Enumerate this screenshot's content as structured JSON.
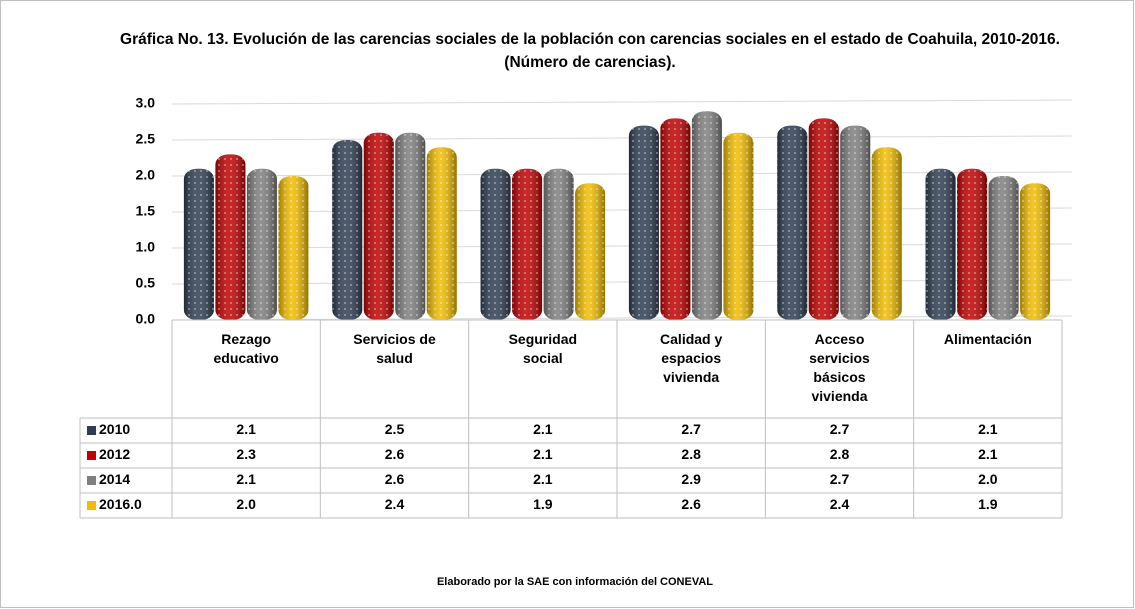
{
  "chart_data": {
    "type": "bar",
    "title": "Gráfica No. 13. Evolución de las carencias sociales de la población con carencias sociales en el estado de Coahuila, 2010-2016. (Número de carencias).",
    "footnote": "Elaborado por la SAE con información del CONEVAL",
    "categories": [
      "Rezago educativo",
      "Servicios de salud",
      "Seguridad social",
      "Calidad y espacios vivienda",
      "Acceso servicios básicos vivienda",
      "Alimentación"
    ],
    "series": [
      {
        "name": "2010",
        "color": "#2e3d52",
        "values": [
          2.1,
          2.5,
          2.1,
          2.7,
          2.7,
          2.1
        ],
        "value_labels": [
          "2.1",
          "2.5",
          "2.1",
          "2.7",
          "2.7",
          "2.1"
        ]
      },
      {
        "name": "2012",
        "color": "#c00000",
        "values": [
          2.3,
          2.6,
          2.1,
          2.8,
          2.8,
          2.1
        ],
        "value_labels": [
          "2.3",
          "2.6",
          "2.1",
          "2.8",
          "2.8",
          "2.1"
        ]
      },
      {
        "name": "2014",
        "color": "#7f7f7f",
        "values": [
          2.1,
          2.6,
          2.1,
          2.9,
          2.7,
          2.0
        ],
        "value_labels": [
          "2.1",
          "2.6",
          "2.1",
          "2.9",
          "2.7",
          "2.0"
        ]
      },
      {
        "name": "2016.0",
        "color": "#f2bd00",
        "values": [
          2.0,
          2.4,
          1.9,
          2.6,
          2.4,
          1.9
        ],
        "value_labels": [
          "2.0",
          "2.4",
          "1.9",
          "2.6",
          "2.4",
          "1.9"
        ]
      }
    ],
    "ylim": [
      0,
      3
    ],
    "yticks": [
      {
        "value": 0,
        "label": "0.0"
      },
      {
        "value": 0.5,
        "label": "0.5"
      },
      {
        "value": 1,
        "label": "1.0"
      },
      {
        "value": 1.5,
        "label": "1.5"
      },
      {
        "value": 2,
        "label": "2.0"
      },
      {
        "value": 2.5,
        "label": "2.5"
      },
      {
        "value": 3,
        "label": "3.0"
      }
    ],
    "grid": true
  }
}
